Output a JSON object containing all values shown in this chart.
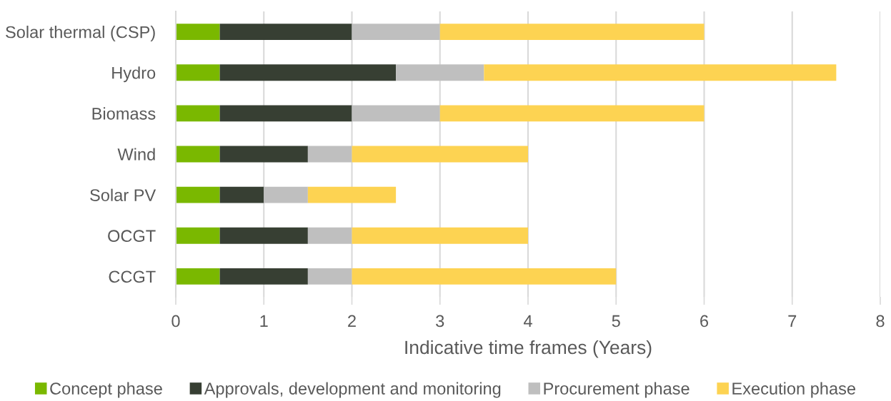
{
  "chart_data": {
    "type": "bar",
    "orientation": "horizontal",
    "stacked": true,
    "xlabel": "Indicative time frames (Years)",
    "categories": [
      "Solar thermal (CSP)",
      "Hydro",
      "Biomass",
      "Wind",
      "Solar PV",
      "OCGT",
      "CCGT"
    ],
    "series": [
      {
        "name": "Concept phase",
        "color": "#7ab800",
        "values": [
          0.5,
          0.5,
          0.5,
          0.5,
          0.5,
          0.5,
          0.5
        ]
      },
      {
        "name": "Approvals, development and monitoring",
        "color": "#373f33",
        "values": [
          1.5,
          2,
          1.5,
          1,
          0.5,
          1,
          1
        ]
      },
      {
        "name": "Procurement phase",
        "color": "#bfbfbf",
        "values": [
          1,
          1,
          1,
          0.5,
          0.5,
          0.5,
          0.5
        ]
      },
      {
        "name": "Execution phase",
        "color": "#fdd352",
        "values": [
          3,
          4,
          3,
          2,
          1,
          2,
          3
        ]
      }
    ],
    "xlim": [
      0,
      8
    ],
    "xticks": [
      0,
      1,
      2,
      3,
      4,
      5,
      6,
      7,
      8
    ],
    "grid": "x",
    "legend": "bottom"
  }
}
